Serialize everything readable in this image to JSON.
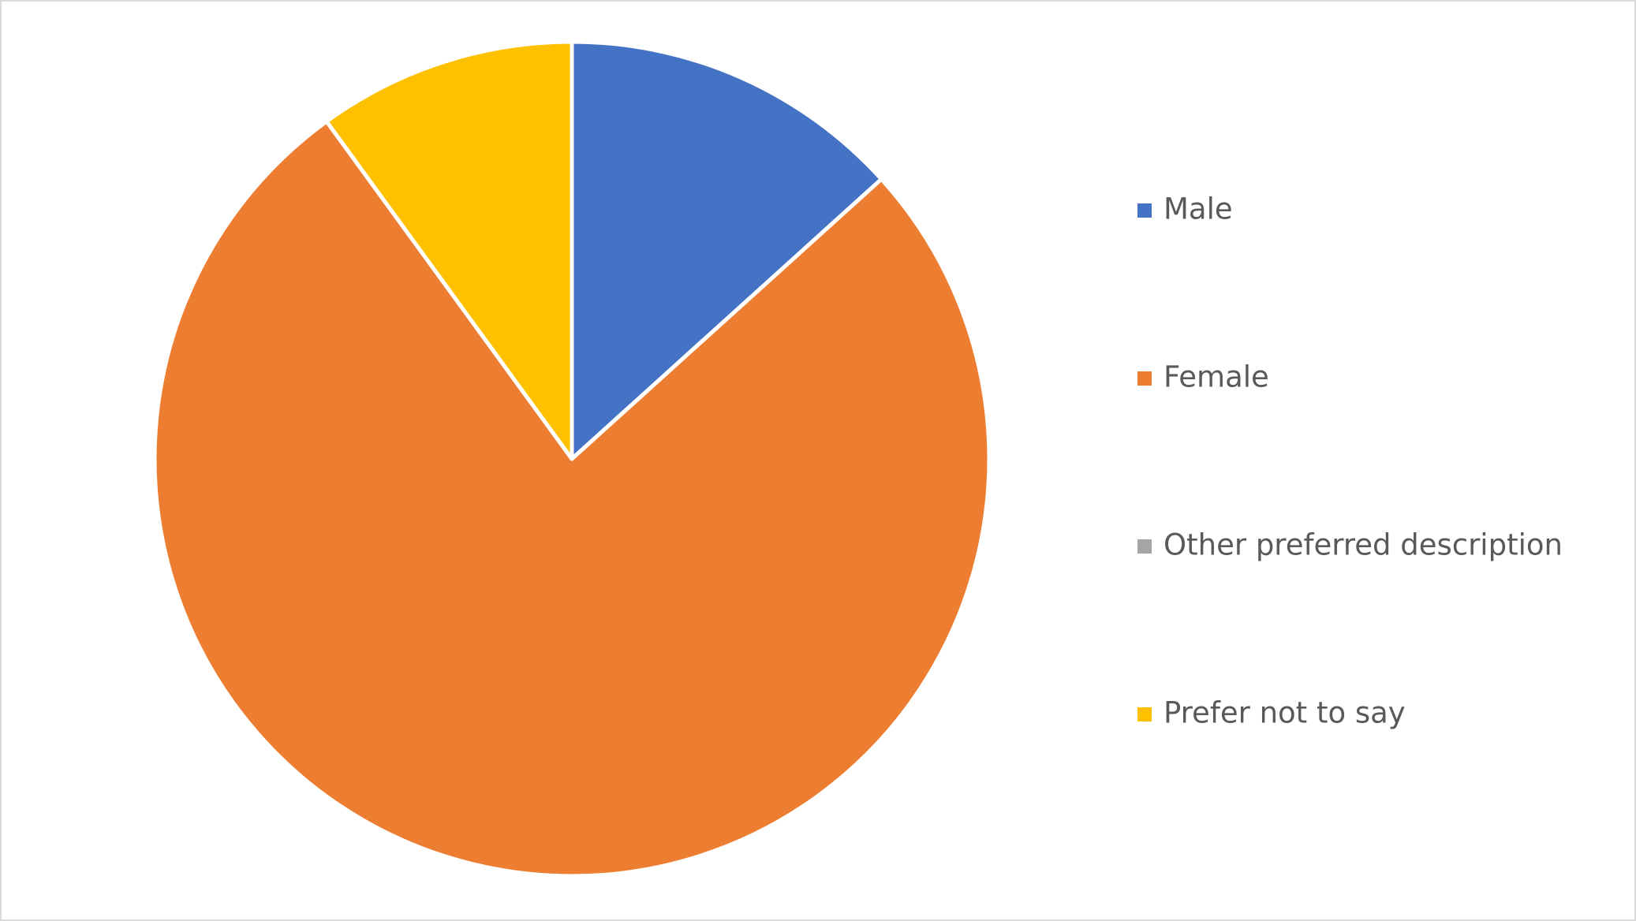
{
  "chart_data": {
    "type": "pie",
    "categories": [
      "Male",
      "Female",
      "Other preferred description",
      "Prefer not to say"
    ],
    "values": [
      13.3,
      76.7,
      0,
      10
    ],
    "colors": [
      "#4472c4",
      "#ed7d31",
      "#a5a5a5",
      "#ffc000"
    ],
    "legend": "right"
  }
}
